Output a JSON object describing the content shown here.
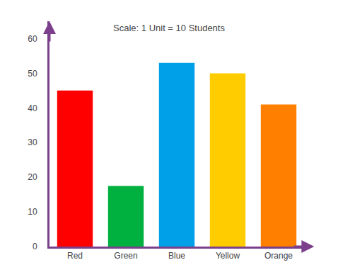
{
  "chart_data": {
    "type": "bar",
    "title": "Scale: 1 Unit = 10 Students",
    "categories": [
      "Red",
      "Green",
      "Blue",
      "Yellow",
      "Orange"
    ],
    "values": [
      45,
      17.5,
      53,
      50,
      41
    ],
    "colors": [
      "#ff0000",
      "#00b140",
      "#00a0e9",
      "#ffcc00",
      "#ff7f00"
    ],
    "ylim": [
      0,
      65
    ],
    "yticks": [
      0,
      10,
      20,
      30,
      40,
      50,
      60
    ],
    "grid": false
  }
}
